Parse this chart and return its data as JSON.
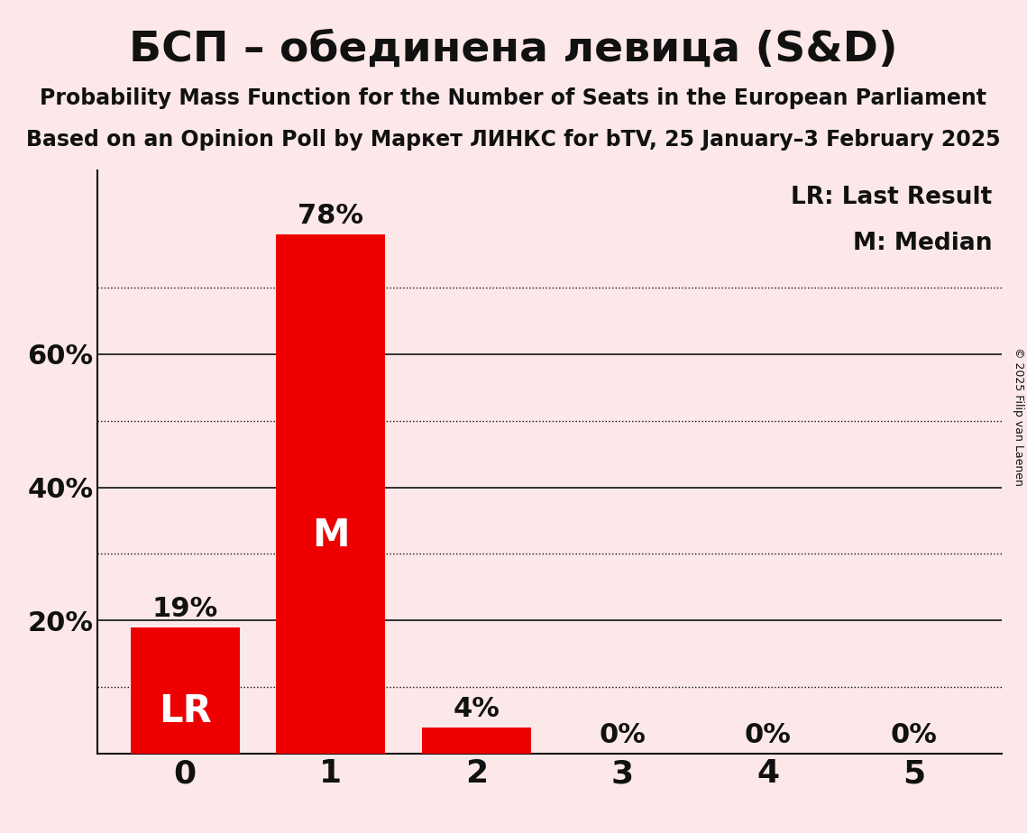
{
  "title": "БСП – обединена левица (S&D)",
  "subtitle1": "Probability Mass Function for the Number of Seats in the European Parliament",
  "subtitle2": "Based on an Opinion Poll by Маркет ЛИНКС for bTV, 25 January–3 February 2025",
  "copyright": "© 2025 Filip van Laenen",
  "categories": [
    0,
    1,
    2,
    3,
    4,
    5
  ],
  "values": [
    0.19,
    0.78,
    0.04,
    0.0,
    0.0,
    0.0
  ],
  "bar_color": "#ee0000",
  "background_color": "#fce8e8",
  "text_color": "#111111",
  "lr_bar": 0,
  "median_bar": 1,
  "ylim": [
    0,
    0.875
  ],
  "yticks": [
    0.2,
    0.4,
    0.6
  ],
  "ytick_labels": [
    "20%",
    "40%",
    "60%"
  ],
  "dotted_grid_lines": [
    0.1,
    0.3,
    0.5,
    0.7
  ],
  "solid_grid_lines": [
    0.2,
    0.4,
    0.6
  ],
  "legend_lr": "LR: Last Result",
  "legend_m": "M: Median",
  "bar_width": 0.75,
  "title_fontsize": 34,
  "subtitle_fontsize": 17,
  "ytick_fontsize": 22,
  "xtick_fontsize": 26,
  "bar_label_fontsize": 22,
  "inner_label_fontsize": 30,
  "legend_fontsize": 19,
  "copyright_fontsize": 9
}
